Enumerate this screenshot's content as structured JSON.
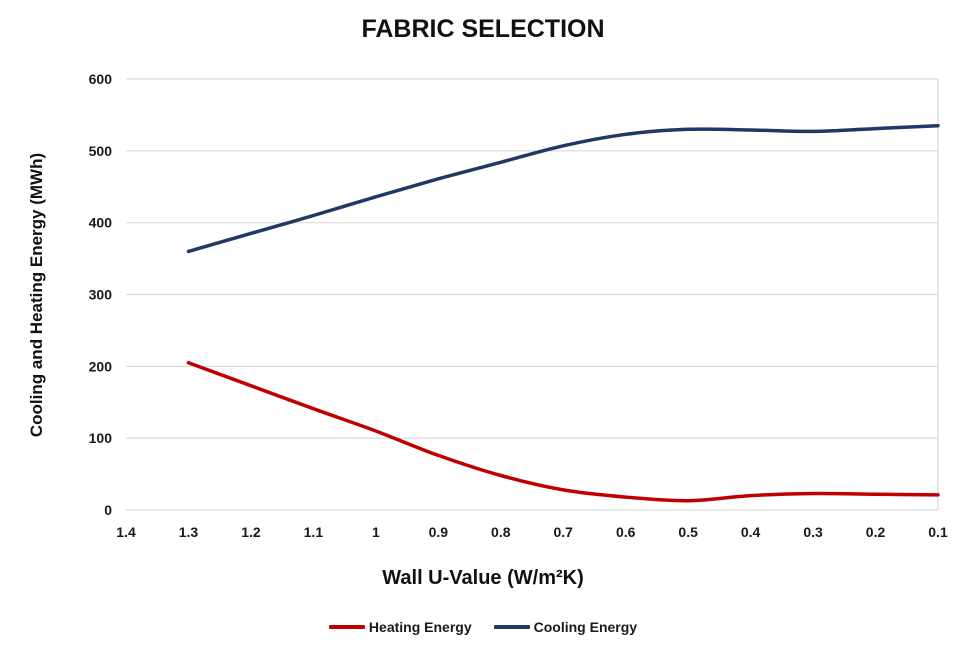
{
  "chart_data": {
    "type": "line",
    "title": "FABRIC SELECTION",
    "xlabel": "Wall U-Value (W/m²K)",
    "ylabel": "Cooling and Heating Energy (MWh)",
    "categories": [
      "1.4",
      "1.3",
      "1.2",
      "1.1",
      "1",
      "0.9",
      "0.8",
      "0.7",
      "0.6",
      "0.5",
      "0.4",
      "0.3",
      "0.2",
      "0.1"
    ],
    "y_ticks": [
      0,
      100,
      200,
      300,
      400,
      500,
      600
    ],
    "ylim": [
      0,
      600
    ],
    "grid": "horizontal",
    "legend_position": "bottom",
    "x_axis_direction": "values decrease left to right",
    "series": [
      {
        "name": "Heating Energy",
        "color": "#C00000",
        "values": [
          null,
          205,
          173,
          141,
          110,
          76,
          48,
          28,
          18,
          13,
          20,
          23,
          22,
          21
        ]
      },
      {
        "name": "Cooling Energy",
        "color": "#1F3864",
        "values": [
          null,
          360,
          385,
          410,
          436,
          461,
          484,
          507,
          523,
          530,
          529,
          527,
          531,
          535
        ]
      }
    ]
  },
  "colors": {
    "gridline": "#D9D9D9",
    "plot_border": "#D9D9D9",
    "text": "#1A1A1A",
    "background": "#FFFFFF"
  }
}
